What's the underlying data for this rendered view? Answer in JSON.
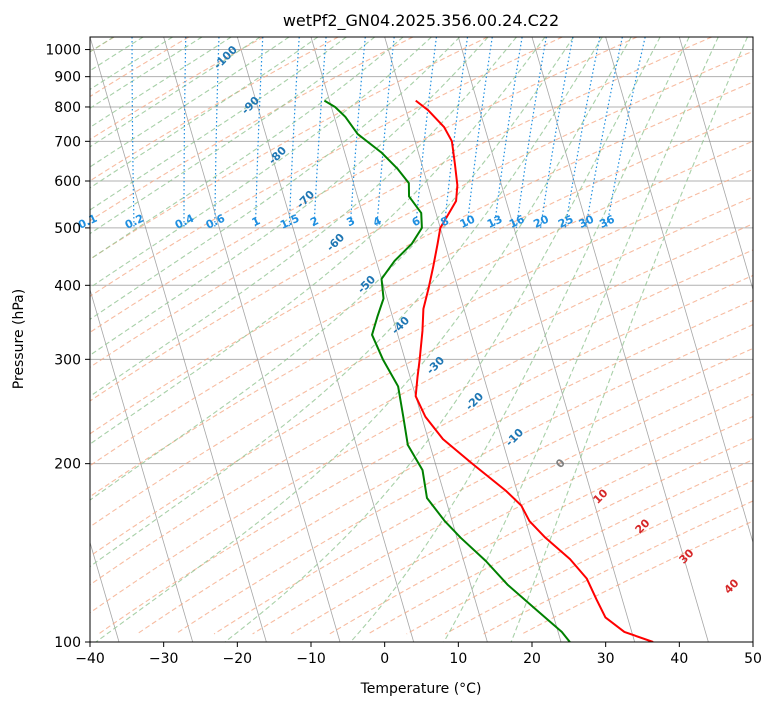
{
  "chart_data": {
    "type": "line",
    "title": "wetPf2_GN04.2025.356.00.24.C22",
    "xlabel": "Temperature (°C)",
    "ylabel": "Pressure (hPa)",
    "xlim": [
      -40,
      50
    ],
    "ylim": [
      1050,
      100
    ],
    "y_scale": "log",
    "x_ticks": [
      "−40",
      "−30",
      "−20",
      "−10",
      "0",
      "10",
      "20",
      "30",
      "40",
      "50"
    ],
    "y_ticks": [
      "100",
      "200",
      "300",
      "400",
      "500",
      "600",
      "700",
      "800",
      "900",
      "1000"
    ],
    "grid": true,
    "series": [
      {
        "name": "",
        "color": "#ff0000",
        "points": [
          [
            1.7,
            820
          ],
          [
            3.0,
            790
          ],
          [
            4.5,
            740
          ],
          [
            5.0,
            700
          ],
          [
            4.5,
            640
          ],
          [
            4.0,
            590
          ],
          [
            3.2,
            555
          ],
          [
            1.5,
            525
          ],
          [
            0.0,
            500
          ],
          [
            -1.0,
            470
          ],
          [
            -2.5,
            430
          ],
          [
            -4.0,
            395
          ],
          [
            -5.5,
            365
          ],
          [
            -6.5,
            335
          ],
          [
            -8.0,
            300
          ],
          [
            -9.0,
            280
          ],
          [
            -10.0,
            260
          ],
          [
            -9.5,
            240
          ],
          [
            -8.0,
            220
          ],
          [
            -5.0,
            200
          ],
          [
            -1.5,
            180
          ],
          [
            0.0,
            170
          ],
          [
            0.5,
            160
          ],
          [
            2.0,
            150
          ],
          [
            4.5,
            138
          ],
          [
            6.0,
            128
          ],
          [
            6.5,
            118
          ],
          [
            7.0,
            110
          ],
          [
            9.0,
            104
          ],
          [
            12.5,
            100
          ]
        ]
      },
      {
        "name": "",
        "color": "#008000",
        "points": [
          [
            -10.7,
            820
          ],
          [
            -9.5,
            800
          ],
          [
            -8.5,
            770
          ],
          [
            -7.5,
            720
          ],
          [
            -5.0,
            670
          ],
          [
            -3.5,
            630
          ],
          [
            -2.5,
            595
          ],
          [
            -3.0,
            565
          ],
          [
            -2.0,
            530
          ],
          [
            -2.5,
            500
          ],
          [
            -4.5,
            470
          ],
          [
            -7.5,
            440
          ],
          [
            -10.0,
            410
          ],
          [
            -10.5,
            380
          ],
          [
            -12.0,
            355
          ],
          [
            -13.5,
            330
          ],
          [
            -13.0,
            300
          ],
          [
            -12.0,
            270
          ],
          [
            -12.5,
            240
          ],
          [
            -13.0,
            215
          ],
          [
            -12.0,
            195
          ],
          [
            -12.5,
            175
          ],
          [
            -11.0,
            160
          ],
          [
            -9.5,
            150
          ],
          [
            -7.0,
            137
          ],
          [
            -5.0,
            125
          ],
          [
            -2.0,
            113
          ],
          [
            0.5,
            104
          ],
          [
            1.2,
            100
          ]
        ]
      }
    ],
    "dry_adiabat_labels": [
      "-100",
      "-90",
      "-80",
      "-70",
      "-60",
      "-50",
      "-40",
      "-30",
      "-20",
      "-10"
    ],
    "mixing_ratio_labels": [
      "0.1",
      "0.2",
      "0.4",
      "0.6",
      "1",
      "1.5",
      "2",
      "3",
      "4",
      "6",
      "8",
      "10",
      "13",
      "16",
      "20",
      "25",
      "30",
      "36"
    ],
    "moist_adiabat_labels": [
      "0",
      "10",
      "20",
      "30",
      "40"
    ],
    "colors": {
      "temperature": "#ff0000",
      "dewpoint": "#008000",
      "dry_adiabat": "#f4a582",
      "moist_adiabat": "#92c492",
      "mixing_ratio": "#1f8fe0",
      "isotherm": "#808080",
      "grid": "#b0b0b0",
      "dry_label": "#1f77b4",
      "moist_label": "#d62728",
      "zero_label": "#808080"
    }
  }
}
